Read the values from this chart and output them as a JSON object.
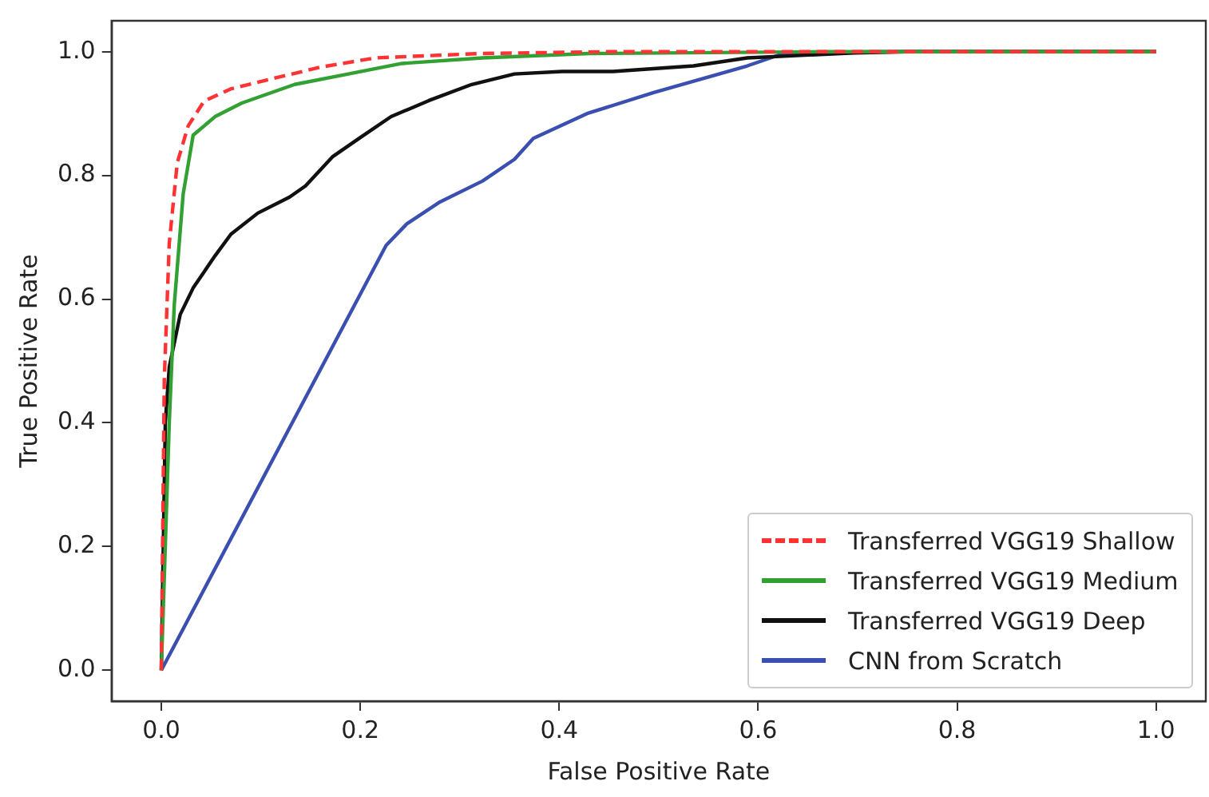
{
  "chart_data": {
    "type": "line",
    "xlabel": "False Positive Rate",
    "ylabel": "True Positive Rate",
    "xlim": [
      -0.05,
      1.05
    ],
    "ylim": [
      -0.05,
      1.05
    ],
    "xticks": [
      {
        "value": 0,
        "label": "0.0"
      },
      0.2,
      0.4,
      0.6,
      0.8,
      {
        "value": 1,
        "label": "1.0"
      }
    ],
    "yticks": [
      {
        "value": 0,
        "label": "0.0"
      },
      0.2,
      0.4,
      0.6,
      0.8,
      {
        "value": 1,
        "label": "1.0"
      }
    ],
    "grid": false,
    "legend": "bottom right",
    "marker": "none",
    "series": [
      {
        "name": "Transferred VGG19 Shallow",
        "color": "#ff3333",
        "line_style": "dashed",
        "x": [
          0,
          0.003,
          0.008,
          0.016,
          0.027,
          0.043,
          0.07,
          0.108,
          0.16,
          0.215,
          0.32,
          0.45,
          1
        ],
        "values": [
          0,
          0.47,
          0.69,
          0.82,
          0.88,
          0.92,
          0.94,
          0.955,
          0.975,
          0.99,
          0.997,
          1,
          1
        ]
      },
      {
        "name": "Transferred VGG19 Medium",
        "color": "#33a033",
        "line_style": "solid",
        "x": [
          0,
          0.008,
          0.013,
          0.022,
          0.032,
          0.054,
          0.081,
          0.134,
          0.188,
          0.242,
          0.323,
          0.43,
          0.67,
          1
        ],
        "values": [
          0,
          0.4,
          0.59,
          0.77,
          0.865,
          0.895,
          0.917,
          0.947,
          0.964,
          0.981,
          0.99,
          0.997,
          1,
          1
        ]
      },
      {
        "name": "Transferred VGG19 Deep",
        "color": "#111111",
        "line_style": "solid",
        "x": [
          0,
          0.004,
          0.008,
          0.019,
          0.032,
          0.054,
          0.07,
          0.097,
          0.129,
          0.145,
          0.172,
          0.199,
          0.231,
          0.269,
          0.312,
          0.355,
          0.403,
          0.454,
          0.535,
          0.589,
          0.696,
          0.75,
          1
        ],
        "values": [
          0,
          0.4,
          0.49,
          0.575,
          0.618,
          0.67,
          0.705,
          0.739,
          0.765,
          0.783,
          0.83,
          0.86,
          0.895,
          0.921,
          0.947,
          0.964,
          0.968,
          0.968,
          0.977,
          0.99,
          0.998,
          1,
          1
        ]
      },
      {
        "name": "CNN from Scratch",
        "color": "#3a4fb0",
        "line_style": "solid",
        "x": [
          0,
          0.226,
          0.247,
          0.28,
          0.323,
          0.355,
          0.374,
          0.428,
          0.495,
          0.589,
          0.627,
          0.724,
          1
        ],
        "values": [
          0,
          0.687,
          0.722,
          0.757,
          0.791,
          0.826,
          0.86,
          0.9,
          0.934,
          0.977,
          0.998,
          1,
          1
        ]
      }
    ]
  }
}
